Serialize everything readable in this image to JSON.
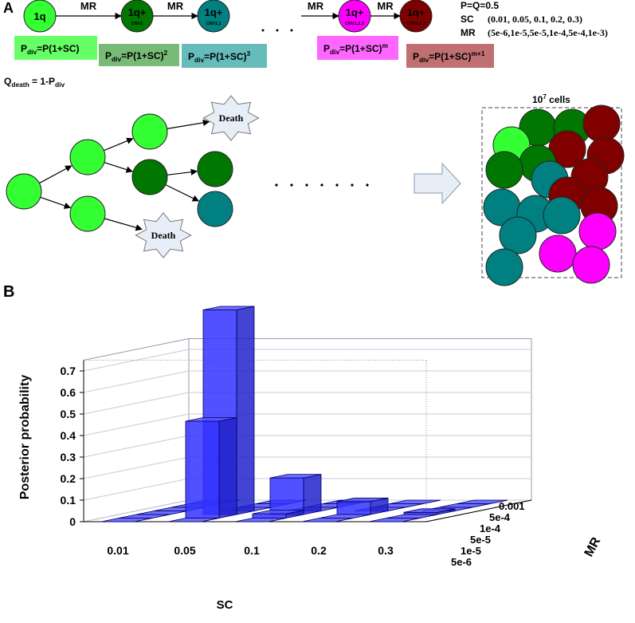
{
  "panel_a": {
    "label": "A",
    "states": [
      {
        "label": "1q"
      },
      {
        "label": "1q+",
        "sublabel": "CNV1"
      },
      {
        "label": "1q+",
        "sublabel": "CNV1,2"
      },
      {
        "label": "1q+",
        "sublabel": "CNV1,2,3"
      },
      {
        "label": "1q+",
        "sublabel": "CNV1,2,3"
      }
    ],
    "transitions": [
      "MR",
      "MR",
      "MR",
      "MR"
    ],
    "parameters": [
      {
        "name": "P=Q=0.5"
      },
      {
        "name": "SC",
        "value": "(0.01, 0.05, 0.1, 0.2, 0.3)"
      },
      {
        "name": "MR",
        "value": "(5e-6,1e-5,5e-5,1e-4,5e-4,1e-3)"
      }
    ],
    "division_rules": [
      {
        "base": "P",
        "sub": "div",
        "rest": "=P(1+SC)"
      },
      {
        "base": "P",
        "sub": "div",
        "rest": "=P(1+SC)",
        "sup": "2"
      },
      {
        "base": "P",
        "sub": "div",
        "rest": "=P(1+SC)",
        "sup": "3"
      },
      {
        "base": "P",
        "sub": "div",
        "rest": "=P(1+SC)",
        "sup": "m"
      },
      {
        "base": "P",
        "sub": "div",
        "rest": "=P(1+SC)",
        "sup": "m+1"
      }
    ],
    "death_rule": {
      "base": "Q",
      "sub": "death",
      "rest": " = 1-P",
      "sub2": "div"
    },
    "death_labels": [
      "Death",
      "Death"
    ],
    "population": {
      "base": "10",
      "sup": "7",
      "rest": " cells"
    }
  },
  "chart_data": {
    "type": "bar3d",
    "panel_label": "B",
    "xlabel": "SC",
    "ylabel": "MR",
    "zlabel": "Posterior probability",
    "categories": [
      "0.01",
      "0.05",
      "0.1",
      "0.2",
      "0.3"
    ],
    "depth_categories": [
      "5e-6",
      "1e-5",
      "5e-5",
      "1e-4",
      "5e-4",
      "0.001"
    ],
    "values": [
      [
        0,
        0,
        0,
        0,
        0,
        0
      ],
      [
        0,
        0.45,
        0.95,
        0,
        0,
        0
      ],
      [
        0,
        0.02,
        0.17,
        0,
        0,
        0
      ],
      [
        0,
        0,
        0.06,
        0,
        0,
        0
      ],
      [
        0,
        0,
        0.01,
        0,
        0,
        0
      ]
    ],
    "color": "#3333ff",
    "zlim": [
      0,
      0.75
    ],
    "zticks": [
      0,
      0.1,
      0.2,
      0.3,
      0.4,
      0.5,
      0.6,
      0.7
    ],
    "grid": true
  }
}
